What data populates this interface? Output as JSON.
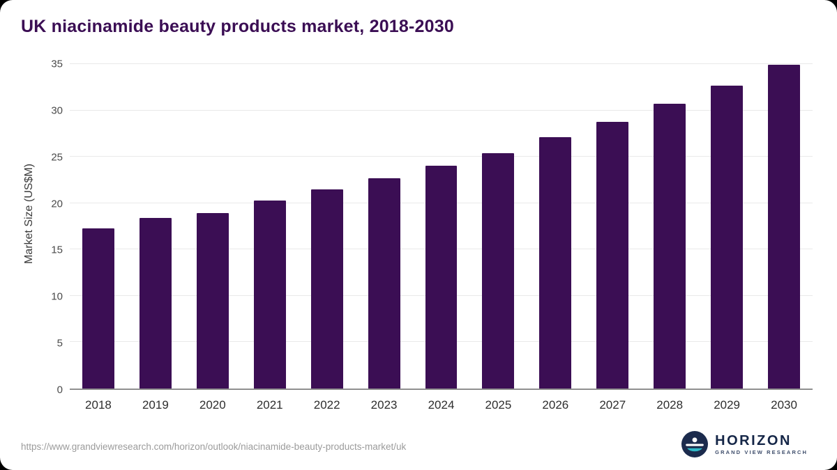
{
  "title": "UK niacinamide beauty products market, 2018-2030",
  "chart_data": {
    "type": "bar",
    "categories": [
      "2018",
      "2019",
      "2020",
      "2021",
      "2022",
      "2023",
      "2024",
      "2025",
      "2026",
      "2027",
      "2028",
      "2029",
      "2030"
    ],
    "values": [
      17.3,
      18.4,
      18.9,
      20.3,
      21.5,
      22.7,
      24.0,
      25.4,
      27.1,
      28.8,
      30.7,
      32.7,
      34.9
    ],
    "title": "UK niacinamide beauty products market, 2018-2030",
    "xlabel": "",
    "ylabel": "Market Size (US$M)",
    "ylim": [
      0,
      35
    ],
    "yticks": [
      0,
      5,
      10,
      15,
      20,
      25,
      30,
      35
    ],
    "grid": true,
    "legend": "none",
    "bar_color": "#3b0e54"
  },
  "footer": {
    "source_url": "https://www.grandviewresearch.com/horizon/outlook/niacinamide-beauty-products-market/uk",
    "logo_text": "HORIZON",
    "logo_subtext": "GRAND VIEW RESEARCH"
  },
  "colors": {
    "bar": "#3b0e54",
    "title": "#3b0e54",
    "gridline": "#e9e9e9",
    "axis": "#8f8f8f",
    "logo_navy": "#1b2b4d",
    "logo_teal": "#2fb9c7"
  }
}
